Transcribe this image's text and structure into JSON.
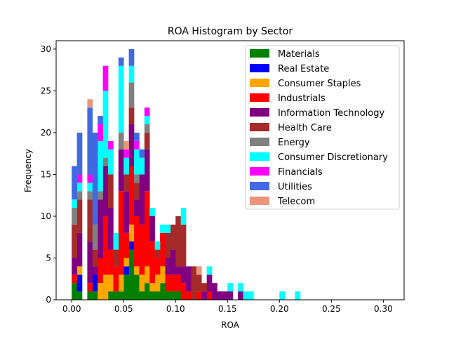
{
  "chart_data": {
    "type": "bar",
    "title": "ROA Histogram by Sector",
    "xlabel": "ROA",
    "ylabel": "Frequency",
    "xlim": [
      -0.015,
      0.32
    ],
    "ylim": [
      0,
      31
    ],
    "x_ticks": [
      0.0,
      0.05,
      0.1,
      0.15,
      0.2,
      0.25,
      0.3
    ],
    "x_tick_labels": [
      "0.00",
      "0.05",
      "0.10",
      "0.15",
      "0.20",
      "0.25",
      "0.30"
    ],
    "y_ticks": [
      0,
      5,
      10,
      15,
      20,
      25,
      30
    ],
    "y_tick_labels": [
      "0",
      "5",
      "10",
      "15",
      "20",
      "25",
      "30"
    ],
    "legend_position": "upper right",
    "grid": false,
    "stacked": true,
    "bin_width": 0.005,
    "bin_start": 0.0,
    "series": [
      {
        "name": "Materials",
        "color": "#008000",
        "values": [
          2,
          1,
          0,
          1,
          1,
          0,
          0,
          1,
          1,
          1,
          3,
          6,
          3,
          1,
          2,
          1,
          1,
          2,
          1,
          1,
          1,
          0,
          0,
          0,
          0,
          0,
          0,
          0,
          0,
          0,
          0,
          0,
          0,
          0,
          0,
          0,
          0,
          0,
          0,
          0,
          0,
          0,
          0,
          0,
          0,
          0,
          0,
          0,
          0,
          0,
          0,
          0,
          0,
          0,
          0,
          0,
          0,
          0,
          0,
          0,
          0
        ]
      },
      {
        "name": "Real Estate",
        "color": "#0000ff",
        "values": [
          0,
          2,
          0,
          0,
          2,
          0,
          0,
          0,
          0,
          0,
          1,
          1,
          0,
          0,
          0,
          0,
          0,
          0,
          0,
          0,
          0,
          0,
          0,
          0,
          0,
          0,
          0,
          0,
          0,
          0,
          0,
          0,
          0,
          0,
          0,
          0,
          0,
          0,
          0,
          0,
          0,
          0,
          0,
          0,
          0,
          0,
          0,
          0,
          0,
          0,
          0,
          0,
          0,
          0,
          0,
          0,
          0,
          0,
          0,
          0,
          0
        ]
      },
      {
        "name": "Consumer Staples",
        "color": "#ffa500",
        "values": [
          0,
          1,
          0,
          0,
          0,
          2,
          3,
          2,
          0,
          2,
          1,
          2,
          1,
          2,
          2,
          1,
          2,
          2,
          0,
          0,
          0,
          0,
          0,
          0,
          0,
          0,
          0,
          0,
          0,
          0,
          0,
          0,
          0,
          0,
          0,
          0,
          0,
          0,
          0,
          0,
          0,
          0,
          0,
          0,
          0,
          0,
          0,
          0,
          0,
          0,
          0,
          0,
          0,
          0,
          0,
          0,
          0,
          0,
          0,
          0,
          0
        ]
      },
      {
        "name": "Industrials",
        "color": "#ff0000",
        "values": [
          1,
          0,
          0,
          1,
          0,
          3,
          7,
          3,
          3,
          10,
          3,
          7,
          6,
          6,
          9,
          5,
          2,
          4,
          2,
          2,
          2,
          2,
          1,
          0,
          1,
          0,
          1,
          0,
          0,
          0,
          0,
          0,
          0,
          0,
          0,
          0,
          0,
          0,
          0,
          0,
          0,
          0,
          0,
          0,
          0,
          0,
          0,
          0,
          0,
          0,
          0,
          0,
          0,
          0,
          0,
          0,
          0,
          0,
          0,
          0,
          0
        ]
      },
      {
        "name": "Information Technology",
        "color": "#800080",
        "values": [
          2,
          4,
          0,
          5,
          1,
          7,
          6,
          5,
          0,
          5,
          5,
          5,
          2,
          6,
          5,
          3,
          0,
          0,
          2,
          3,
          1,
          2,
          3,
          0,
          0,
          1,
          2,
          2,
          1,
          1,
          1,
          0,
          1,
          0,
          0,
          0,
          0,
          0,
          0,
          0,
          0,
          0,
          0,
          0,
          0,
          0,
          0,
          0,
          0,
          0,
          0,
          0,
          0,
          0,
          0,
          0,
          0,
          0,
          0,
          0,
          0
        ]
      },
      {
        "name": "Health Care",
        "color": "#a52a2a",
        "values": [
          4,
          4,
          0,
          5,
          2,
          0,
          0,
          4,
          2,
          0,
          2,
          2,
          2,
          0,
          2,
          0,
          1,
          0,
          3,
          3,
          6,
          5,
          0,
          4,
          2,
          1,
          0,
          0,
          0,
          0,
          0,
          0,
          0,
          0,
          0,
          0,
          0,
          0,
          0,
          0,
          0,
          0,
          0,
          0,
          0,
          0,
          0,
          0,
          0,
          0,
          0,
          0,
          0,
          0,
          0,
          0,
          0,
          0,
          0,
          0,
          0
        ]
      },
      {
        "name": "Energy",
        "color": "#808080",
        "values": [
          2,
          1,
          0,
          1,
          3,
          1,
          1,
          0,
          0,
          2,
          0,
          3,
          1,
          0,
          1,
          0,
          0,
          0,
          0,
          0,
          0,
          0,
          0,
          0,
          0,
          0,
          0,
          0,
          0,
          0,
          0,
          0,
          0,
          0,
          0,
          0,
          0,
          0,
          0,
          0,
          0,
          0,
          0,
          0,
          0,
          0,
          0,
          0,
          0,
          0,
          0,
          0,
          0,
          0,
          0,
          0,
          0,
          0,
          0,
          0,
          0
        ]
      },
      {
        "name": "Consumer Discretionary",
        "color": "#00ffff",
        "values": [
          1,
          1,
          0,
          1,
          0,
          6,
          8,
          3,
          2,
          8,
          2,
          2,
          3,
          2,
          1,
          1,
          1,
          1,
          1,
          0,
          0,
          2,
          0,
          0,
          0,
          0,
          1,
          0,
          0,
          0,
          1,
          0,
          1,
          1,
          1,
          0,
          0,
          0,
          0,
          0,
          1,
          0,
          0,
          1,
          0,
          0,
          0,
          0,
          0,
          0,
          0,
          0,
          0,
          0,
          0,
          0,
          0,
          0,
          0,
          0,
          0
        ]
      },
      {
        "name": "Financials",
        "color": "#ff00ff",
        "values": [
          0,
          1,
          0,
          1,
          0,
          2,
          3,
          1,
          0,
          0,
          1,
          0,
          1,
          0,
          1,
          0,
          0,
          0,
          0,
          0,
          0,
          0,
          0,
          0,
          0,
          0,
          0,
          0,
          0,
          0,
          0,
          0,
          0,
          0,
          0,
          0,
          0,
          0,
          0,
          0,
          0,
          0,
          0,
          0,
          0,
          0,
          0,
          0,
          0,
          0,
          0,
          0,
          0,
          0,
          0,
          0,
          0,
          0,
          0,
          0,
          0
        ]
      },
      {
        "name": "Utilities",
        "color": "#4169e1",
        "values": [
          4,
          5,
          0,
          8,
          11,
          1,
          0,
          0,
          0,
          1,
          0,
          2,
          1,
          1,
          0,
          0,
          0,
          0,
          0,
          0,
          0,
          0,
          0,
          0,
          0,
          0,
          0,
          0,
          0,
          0,
          0,
          0,
          0,
          0,
          0,
          0,
          0,
          0,
          0,
          0,
          0,
          0,
          0,
          0,
          0,
          0,
          0,
          0,
          0,
          0,
          0,
          0,
          0,
          0,
          0,
          0,
          0,
          0,
          0,
          0,
          0
        ]
      },
      {
        "name": "Telecom",
        "color": "#e9967a",
        "values": [
          0,
          0,
          0,
          1,
          0,
          0,
          0,
          0,
          0,
          0,
          1,
          0,
          0,
          0,
          0,
          0,
          0,
          0,
          0,
          0,
          0,
          0,
          0,
          0,
          1,
          0,
          0,
          0,
          0,
          0,
          0,
          0,
          0,
          0,
          0,
          0,
          0,
          0,
          0,
          0,
          0,
          0,
          0,
          0,
          0,
          0,
          0,
          0,
          0,
          0,
          0,
          0,
          0,
          0,
          0,
          0,
          0,
          0,
          0,
          0,
          0
        ]
      }
    ]
  }
}
